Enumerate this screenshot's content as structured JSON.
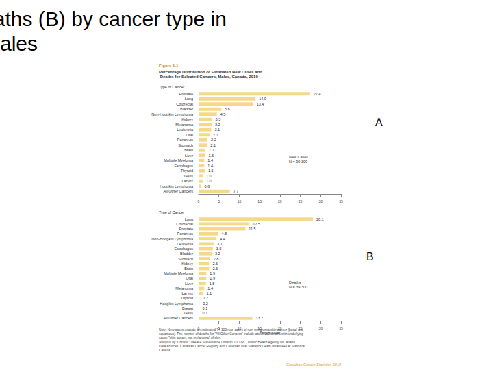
{
  "slide_title": "New cases (A) and Deaths (B) by cancer type in Males",
  "figure_label": "Figure 1.1",
  "figure_title": "Percentage Distribution of Estimated New Cases and Deaths for Selected Cancers, Males, Canada, 2010",
  "panel_labels": [
    "A",
    "B"
  ],
  "notes": [
    "Note: New cases exclude an estimated 74 100 new cases of non-melanoma skin cancer (basal and squamous). The number of deaths for \"All Other Cancers\" include about 100 deaths with underlying cause \"skin cancer, not melanoma\" of skin.",
    "Analysis by: Chronic Disease Surveillance Division, CCDPC, Public Health Agency of Canada",
    "Data sources: Canadian Cancer Registry and Canadian Vital Statistics Death databases at Statistics Canada"
  ],
  "source_mark": "Canadian Cancer Statistics 2010",
  "chart_data": [
    {
      "type": "bar",
      "orientation": "horizontal",
      "ylabel": "Type of Cancer",
      "annotation": [
        "New Cases",
        "N = 90 300"
      ],
      "categories": [
        "Prostate",
        "Lung",
        "Colorectal",
        "Bladder",
        "Non-Hodgkin Lymphoma",
        "Kidney",
        "Melanoma",
        "Leukemia",
        "Oral",
        "Pancreas",
        "Stomach",
        "Brain",
        "Liver",
        "Multiple Myeloma",
        "Esophagus",
        "Thyroid",
        "Testis",
        "Larynx",
        "Hodgkin Lymphoma",
        "All Other Cancers"
      ],
      "values": [
        27.4,
        14.0,
        13.4,
        5.6,
        4.5,
        3.3,
        3.2,
        3.1,
        2.7,
        2.2,
        2.1,
        1.7,
        1.6,
        1.4,
        1.4,
        1.5,
        1.0,
        1.0,
        0.6,
        7.7
      ],
      "value_labels": [
        "27.4",
        "14.0",
        "13.4",
        "5.6",
        "4.5",
        "3.3",
        "3.2",
        "3.1",
        "2.7",
        "2.2",
        "2.1",
        "1.7",
        "1.6",
        "1.4",
        "1.4",
        "1.5",
        "1.0",
        "1.0",
        "0.6",
        "7.7"
      ],
      "color": "#f5d98b",
      "xlim": [
        0,
        35
      ],
      "xticks": [
        0,
        5,
        10,
        15,
        20,
        25,
        30,
        35
      ],
      "grid": false,
      "data_labels": true
    },
    {
      "type": "bar",
      "orientation": "horizontal",
      "ylabel": "Type of Cancer",
      "xlabel": "Percentage",
      "annotation": [
        "Deaths",
        "N = 39 300"
      ],
      "categories": [
        "Lung",
        "Colorectal",
        "Prostate",
        "Pancreas",
        "Non-Hodgkin Lymphoma",
        "Leukemia",
        "Esophagus",
        "Bladder",
        "Stomach",
        "Kidney",
        "Brain",
        "Multiple Myeloma",
        "Oral",
        "Liver",
        "Melanoma",
        "Larynx",
        "Thyroid",
        "Hodgkin Lymphoma",
        "Breast",
        "Testis",
        "All Other Cancers"
      ],
      "values": [
        28.1,
        12.5,
        11.5,
        4.8,
        4.4,
        3.7,
        3.5,
        3.2,
        2.8,
        2.6,
        2.6,
        1.9,
        1.9,
        1.8,
        1.4,
        1.1,
        0.2,
        0.2,
        0.1,
        0.1,
        13.2
      ],
      "color": "#f5d98b",
      "xlim": [
        0,
        35
      ],
      "xticks": [
        0,
        5,
        10,
        15,
        20,
        25,
        30,
        35
      ],
      "grid": false,
      "data_labels": true
    }
  ]
}
